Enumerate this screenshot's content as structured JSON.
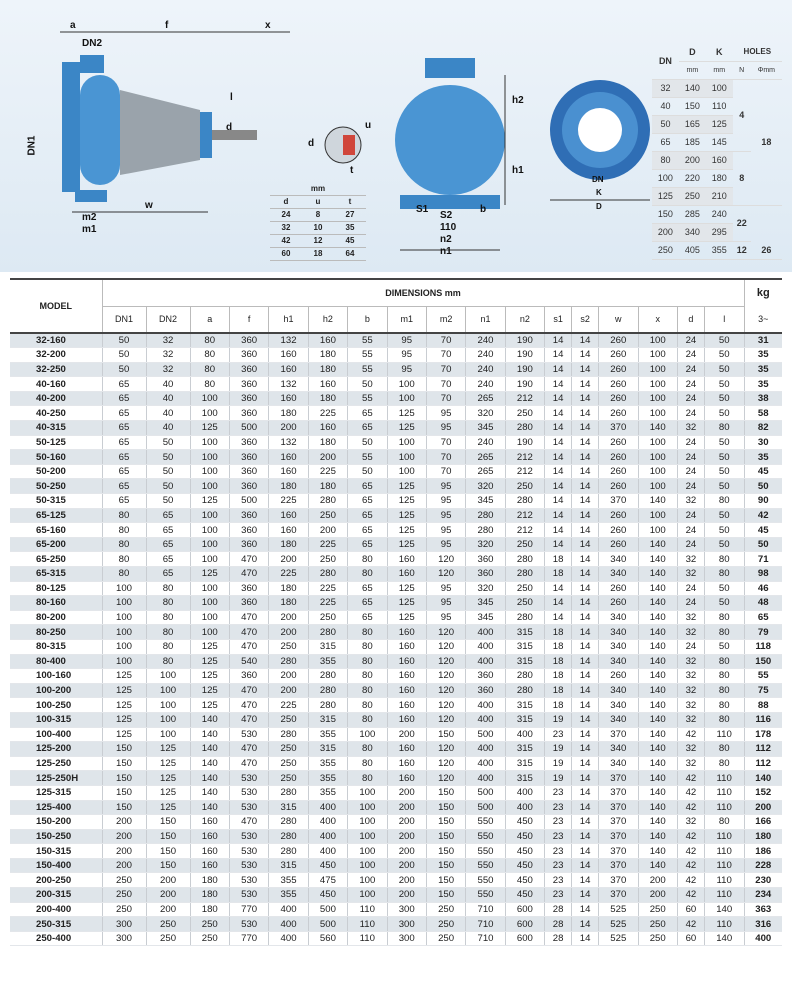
{
  "drawing": {
    "labels": {
      "a": "a",
      "f": "f",
      "x": "x",
      "dn2": "DN2",
      "dn1": "DN1",
      "l": "l",
      "d": "d",
      "m2": "m2",
      "m1": "m1",
      "w": "w",
      "h2": "h2",
      "h1": "h1",
      "s1": "S1",
      "s2": "S2",
      "v110": "110",
      "b": "b",
      "n2": "n2",
      "n1": "n1",
      "sd": "d",
      "su": "u",
      "st": "t",
      "dn": "DN",
      "k": "K",
      "D": "D"
    }
  },
  "key_table": {
    "unit": "mm",
    "headers": [
      "d",
      "u",
      "t"
    ],
    "rows": [
      [
        "24",
        "8",
        "27"
      ],
      [
        "32",
        "10",
        "35"
      ],
      [
        "42",
        "12",
        "45"
      ],
      [
        "60",
        "18",
        "64"
      ]
    ]
  },
  "flange_table": {
    "h_dn": "DN",
    "h_d": "D",
    "h_k": "K",
    "h_holes": "HOLES",
    "u_d": "mm",
    "u_k": "mm",
    "u_n": "N",
    "u_phi": "Φmm",
    "rows": [
      [
        "32",
        "140",
        "100"
      ],
      [
        "40",
        "150",
        "110"
      ],
      [
        "50",
        "165",
        "125"
      ],
      [
        "65",
        "185",
        "145"
      ],
      [
        "80",
        "200",
        "160"
      ],
      [
        "100",
        "220",
        "180"
      ],
      [
        "125",
        "250",
        "210"
      ],
      [
        "150",
        "285",
        "240"
      ],
      [
        "200",
        "340",
        "295"
      ],
      [
        "250",
        "405",
        "355"
      ]
    ],
    "n": [
      "4",
      "8",
      "12"
    ],
    "phi": [
      "18",
      "22",
      "26"
    ]
  },
  "table": {
    "model": "MODEL",
    "dimensions": "DIMENSIONS  mm",
    "kg": "kg",
    "kg_sub": "3~",
    "columns": [
      "DN1",
      "DN2",
      "a",
      "f",
      "h1",
      "h2",
      "b",
      "m1",
      "m2",
      "n1",
      "n2",
      "s1",
      "s2",
      "w",
      "x",
      "d",
      "l"
    ],
    "rows": [
      [
        "32-160",
        50,
        32,
        80,
        360,
        132,
        160,
        55,
        95,
        70,
        240,
        190,
        14,
        14,
        260,
        100,
        24,
        50,
        31
      ],
      [
        "32-200",
        50,
        32,
        80,
        360,
        160,
        180,
        55,
        95,
        70,
        240,
        190,
        14,
        14,
        260,
        100,
        24,
        50,
        35
      ],
      [
        "32-250",
        50,
        32,
        80,
        360,
        160,
        180,
        55,
        95,
        70,
        240,
        190,
        14,
        14,
        260,
        100,
        24,
        50,
        35
      ],
      [
        "40-160",
        65,
        40,
        80,
        360,
        132,
        160,
        50,
        100,
        70,
        240,
        190,
        14,
        14,
        260,
        100,
        24,
        50,
        35
      ],
      [
        "40-200",
        65,
        40,
        100,
        360,
        160,
        180,
        55,
        100,
        70,
        265,
        212,
        14,
        14,
        260,
        100,
        24,
        50,
        38
      ],
      [
        "40-250",
        65,
        40,
        100,
        360,
        180,
        225,
        65,
        125,
        95,
        320,
        250,
        14,
        14,
        260,
        100,
        24,
        50,
        58
      ],
      [
        "40-315",
        65,
        40,
        125,
        500,
        200,
        160,
        65,
        125,
        95,
        345,
        280,
        14,
        14,
        370,
        140,
        32,
        80,
        82
      ],
      [
        "50-125",
        65,
        50,
        100,
        360,
        132,
        180,
        50,
        100,
        70,
        240,
        190,
        14,
        14,
        260,
        100,
        24,
        50,
        30
      ],
      [
        "50-160",
        65,
        50,
        100,
        360,
        160,
        200,
        55,
        100,
        70,
        265,
        212,
        14,
        14,
        260,
        100,
        24,
        50,
        35
      ],
      [
        "50-200",
        65,
        50,
        100,
        360,
        160,
        225,
        50,
        100,
        70,
        265,
        212,
        14,
        14,
        260,
        100,
        24,
        50,
        45
      ],
      [
        "50-250",
        65,
        50,
        100,
        360,
        180,
        180,
        65,
        125,
        95,
        320,
        250,
        14,
        14,
        260,
        100,
        24,
        50,
        50
      ],
      [
        "50-315",
        65,
        50,
        125,
        500,
        225,
        280,
        65,
        125,
        95,
        345,
        280,
        14,
        14,
        370,
        140,
        32,
        80,
        90
      ],
      [
        "65-125",
        80,
        65,
        100,
        360,
        160,
        250,
        65,
        125,
        95,
        280,
        212,
        14,
        14,
        260,
        100,
        24,
        50,
        42
      ],
      [
        "65-160",
        80,
        65,
        100,
        360,
        160,
        200,
        65,
        125,
        95,
        280,
        212,
        14,
        14,
        260,
        100,
        24,
        50,
        45
      ],
      [
        "65-200",
        80,
        65,
        100,
        360,
        180,
        225,
        65,
        125,
        95,
        320,
        250,
        14,
        14,
        260,
        140,
        24,
        50,
        50
      ],
      [
        "65-250",
        80,
        65,
        100,
        470,
        200,
        250,
        80,
        160,
        120,
        360,
        280,
        18,
        14,
        340,
        140,
        32,
        80,
        71
      ],
      [
        "65-315",
        80,
        65,
        125,
        470,
        225,
        280,
        80,
        160,
        120,
        360,
        280,
        18,
        14,
        340,
        140,
        32,
        80,
        98
      ],
      [
        "80-125",
        100,
        80,
        100,
        360,
        180,
        225,
        65,
        125,
        95,
        320,
        250,
        14,
        14,
        260,
        140,
        24,
        50,
        46
      ],
      [
        "80-160",
        100,
        80,
        100,
        360,
        180,
        225,
        65,
        125,
        95,
        345,
        250,
        14,
        14,
        260,
        140,
        24,
        50,
        48
      ],
      [
        "80-200",
        100,
        80,
        100,
        470,
        200,
        250,
        65,
        125,
        95,
        345,
        280,
        14,
        14,
        340,
        140,
        32,
        80,
        65
      ],
      [
        "80-250",
        100,
        80,
        100,
        470,
        200,
        280,
        80,
        160,
        120,
        400,
        315,
        18,
        14,
        340,
        140,
        32,
        80,
        79
      ],
      [
        "80-315",
        100,
        80,
        125,
        470,
        250,
        315,
        80,
        160,
        120,
        400,
        315,
        18,
        14,
        340,
        140,
        24,
        50,
        118
      ],
      [
        "80-400",
        100,
        80,
        125,
        540,
        280,
        355,
        80,
        160,
        120,
        400,
        315,
        18,
        14,
        340,
        140,
        32,
        80,
        150
      ],
      [
        "100-160",
        125,
        100,
        125,
        360,
        200,
        280,
        80,
        160,
        120,
        360,
        280,
        18,
        14,
        260,
        140,
        32,
        80,
        55
      ],
      [
        "100-200",
        125,
        100,
        125,
        470,
        200,
        280,
        80,
        160,
        120,
        360,
        280,
        18,
        14,
        340,
        140,
        32,
        80,
        75
      ],
      [
        "100-250",
        125,
        100,
        125,
        470,
        225,
        280,
        80,
        160,
        120,
        400,
        315,
        18,
        14,
        340,
        140,
        32,
        80,
        88
      ],
      [
        "100-315",
        125,
        100,
        140,
        470,
        250,
        315,
        80,
        160,
        120,
        400,
        315,
        19,
        14,
        340,
        140,
        32,
        80,
        116
      ],
      [
        "100-400",
        125,
        100,
        140,
        530,
        280,
        355,
        100,
        200,
        150,
        500,
        400,
        23,
        14,
        370,
        140,
        42,
        110,
        178
      ],
      [
        "125-200",
        150,
        125,
        140,
        470,
        250,
        315,
        80,
        160,
        120,
        400,
        315,
        19,
        14,
        340,
        140,
        32,
        80,
        112
      ],
      [
        "125-250",
        150,
        125,
        140,
        470,
        250,
        355,
        80,
        160,
        120,
        400,
        315,
        19,
        14,
        340,
        140,
        32,
        80,
        112
      ],
      [
        "125-250H",
        150,
        125,
        140,
        530,
        250,
        355,
        80,
        160,
        120,
        400,
        315,
        19,
        14,
        370,
        140,
        42,
        110,
        140
      ],
      [
        "125-315",
        150,
        125,
        140,
        530,
        280,
        355,
        100,
        200,
        150,
        500,
        400,
        23,
        14,
        370,
        140,
        42,
        110,
        152
      ],
      [
        "125-400",
        150,
        125,
        140,
        530,
        315,
        400,
        100,
        200,
        150,
        500,
        400,
        23,
        14,
        370,
        140,
        42,
        110,
        200
      ],
      [
        "150-200",
        200,
        150,
        160,
        470,
        280,
        400,
        100,
        200,
        150,
        550,
        450,
        23,
        14,
        370,
        140,
        32,
        80,
        166
      ],
      [
        "150-250",
        200,
        150,
        160,
        530,
        280,
        400,
        100,
        200,
        150,
        550,
        450,
        23,
        14,
        370,
        140,
        42,
        110,
        180
      ],
      [
        "150-315",
        200,
        150,
        160,
        530,
        280,
        400,
        100,
        200,
        150,
        550,
        450,
        23,
        14,
        370,
        140,
        42,
        110,
        186
      ],
      [
        "150-400",
        200,
        150,
        160,
        530,
        315,
        450,
        100,
        200,
        150,
        550,
        450,
        23,
        14,
        370,
        140,
        42,
        110,
        228
      ],
      [
        "200-250",
        250,
        200,
        180,
        530,
        355,
        475,
        100,
        200,
        150,
        550,
        450,
        23,
        14,
        370,
        200,
        42,
        110,
        230
      ],
      [
        "200-315",
        250,
        200,
        180,
        530,
        355,
        450,
        100,
        200,
        150,
        550,
        450,
        23,
        14,
        370,
        200,
        42,
        110,
        234
      ],
      [
        "200-400",
        250,
        200,
        180,
        770,
        400,
        500,
        110,
        300,
        250,
        710,
        600,
        28,
        14,
        525,
        250,
        60,
        140,
        363
      ],
      [
        "250-315",
        300,
        250,
        250,
        530,
        400,
        500,
        110,
        300,
        250,
        710,
        600,
        28,
        14,
        525,
        250,
        42,
        110,
        316
      ],
      [
        "250-400",
        300,
        250,
        250,
        770,
        400,
        560,
        110,
        300,
        250,
        710,
        600,
        28,
        14,
        525,
        250,
        60,
        140,
        400
      ]
    ]
  },
  "colors": {
    "pump_blue": "#3b86c6",
    "accent_dark": "#1d4f8a"
  }
}
